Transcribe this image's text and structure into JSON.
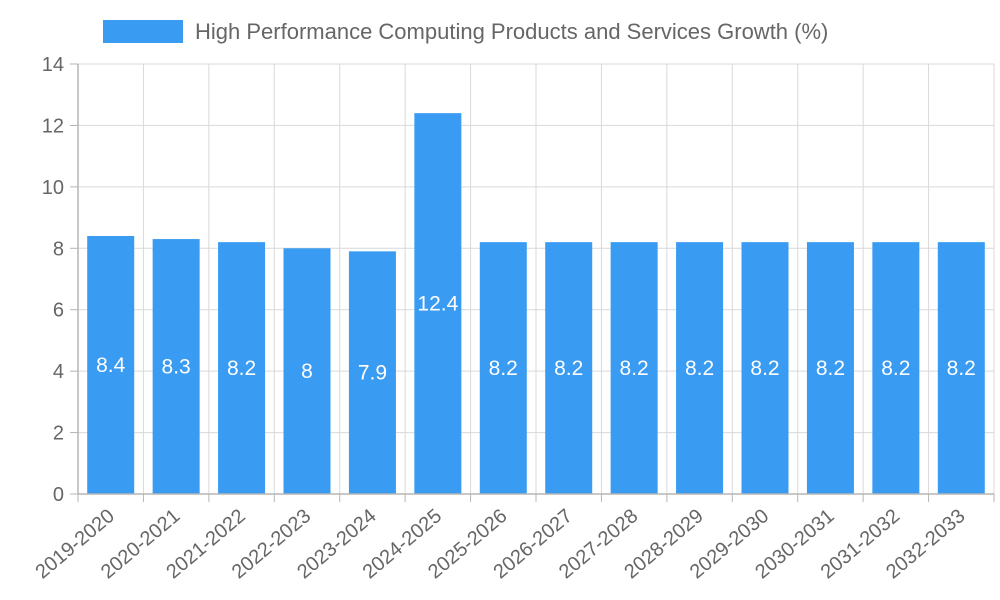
{
  "chart_data": {
    "type": "bar",
    "title": "",
    "xlabel": "",
    "ylabel": "",
    "categories": [
      "2019-2020",
      "2020-2021",
      "2021-2022",
      "2022-2023",
      "2023-2024",
      "2024-2025",
      "2025-2026",
      "2026-2027",
      "2027-2028",
      "2028-2029",
      "2029-2030",
      "2030-2031",
      "2031-2032",
      "2032-2033"
    ],
    "series": [
      {
        "name": "High Performance Computing Products and Services Growth (%)",
        "values": [
          8.4,
          8.3,
          8.2,
          8,
          7.9,
          12.4,
          8.2,
          8.2,
          8.2,
          8.2,
          8.2,
          8.2,
          8.2,
          8.2
        ],
        "color": "#3a9bf2"
      }
    ],
    "ylim": [
      0,
      14
    ],
    "yticks": [
      0,
      2,
      4,
      6,
      8,
      10,
      12,
      14
    ],
    "grid": true,
    "legend_position": "top-center"
  }
}
